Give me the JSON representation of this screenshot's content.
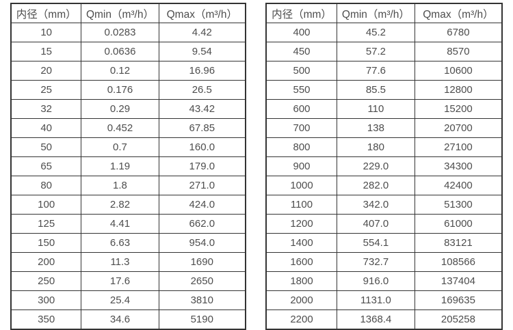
{
  "colors": {
    "text": "#4d4d4d",
    "border": "#333333",
    "background": "#ffffff"
  },
  "chart_data": [
    {
      "type": "table",
      "title": "",
      "headers": [
        "内径（mm）",
        "Qmin（m³/h）",
        "Qmax（m³/h）"
      ],
      "rows": [
        [
          "10",
          "0.0283",
          "4.42"
        ],
        [
          "15",
          "0.0636",
          "9.54"
        ],
        [
          "20",
          "0.12",
          "16.96"
        ],
        [
          "25",
          "0.176",
          "26.5"
        ],
        [
          "32",
          "0.29",
          "43.42"
        ],
        [
          "40",
          "0.452",
          "67.85"
        ],
        [
          "50",
          "0.7",
          "160.0"
        ],
        [
          "65",
          "1.19",
          "179.0"
        ],
        [
          "80",
          "1.8",
          "271.0"
        ],
        [
          "100",
          "2.82",
          "424.0"
        ],
        [
          "125",
          "4.41",
          "662.0"
        ],
        [
          "150",
          "6.63",
          "954.0"
        ],
        [
          "200",
          "11.3",
          "1690"
        ],
        [
          "250",
          "17.6",
          "2650"
        ],
        [
          "300",
          "25.4",
          "3810"
        ],
        [
          "350",
          "34.6",
          "5190"
        ]
      ]
    },
    {
      "type": "table",
      "title": "",
      "headers": [
        "内径（mm）",
        "Qmin（m³/h）",
        "Qmax（m³/h）"
      ],
      "rows": [
        [
          "400",
          "45.2",
          "6780"
        ],
        [
          "450",
          "57.2",
          "8570"
        ],
        [
          "500",
          "77.6",
          "10600"
        ],
        [
          "550",
          "85.5",
          "12800"
        ],
        [
          "600",
          "110",
          "15200"
        ],
        [
          "700",
          "138",
          "20700"
        ],
        [
          "800",
          "180",
          "27100"
        ],
        [
          "900",
          "229.0",
          "34300"
        ],
        [
          "1000",
          "282.0",
          "42400"
        ],
        [
          "1100",
          "342.0",
          "51300"
        ],
        [
          "1200",
          "407.0",
          "61000"
        ],
        [
          "1400",
          "554.1",
          "83121"
        ],
        [
          "1600",
          "732.7",
          "108566"
        ],
        [
          "1800",
          "916.0",
          "137404"
        ],
        [
          "2000",
          "1131.0",
          "169635"
        ],
        [
          "2200",
          "1368.4",
          "205258"
        ]
      ]
    }
  ]
}
